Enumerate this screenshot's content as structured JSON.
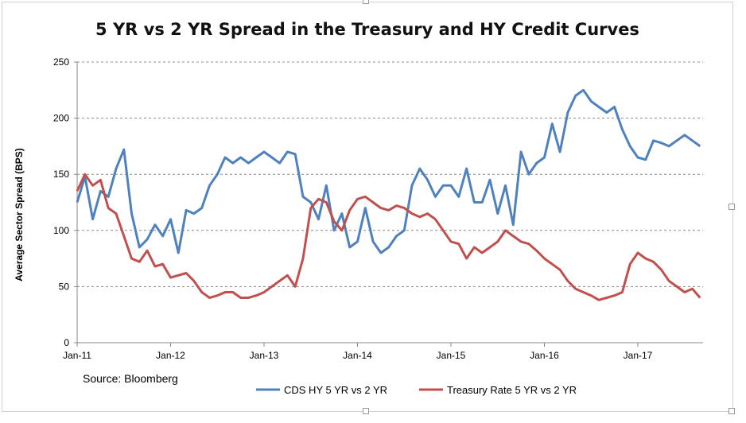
{
  "chart_data": {
    "type": "line",
    "title": "5 YR vs 2 YR Spread in the Treasury and HY Credit Curves",
    "ylabel": "Average Sector Spread (BPS)",
    "xlabel": "",
    "source": "Source: Bloomberg",
    "ylim": [
      0,
      250
    ],
    "yticks": [
      "0",
      "50",
      "100",
      "150",
      "200",
      "250"
    ],
    "xticks": [
      "Jan-11",
      "Jan-12",
      "Jan-13",
      "Jan-14",
      "Jan-15",
      "Jan-16",
      "Jan-17"
    ],
    "grid": true,
    "legend": "bottom",
    "x": [
      "Jan-11",
      "Feb-11",
      "Mar-11",
      "Apr-11",
      "May-11",
      "Jun-11",
      "Jul-11",
      "Aug-11",
      "Sep-11",
      "Oct-11",
      "Nov-11",
      "Dec-11",
      "Jan-12",
      "Feb-12",
      "Mar-12",
      "Apr-12",
      "May-12",
      "Jun-12",
      "Jul-12",
      "Aug-12",
      "Sep-12",
      "Oct-12",
      "Nov-12",
      "Dec-12",
      "Jan-13",
      "Feb-13",
      "Mar-13",
      "Apr-13",
      "May-13",
      "Jun-13",
      "Jul-13",
      "Aug-13",
      "Sep-13",
      "Oct-13",
      "Nov-13",
      "Dec-13",
      "Jan-14",
      "Feb-14",
      "Mar-14",
      "Apr-14",
      "May-14",
      "Jun-14",
      "Jul-14",
      "Aug-14",
      "Sep-14",
      "Oct-14",
      "Nov-14",
      "Dec-14",
      "Jan-15",
      "Feb-15",
      "Mar-15",
      "Apr-15",
      "May-15",
      "Jun-15",
      "Jul-15",
      "Aug-15",
      "Sep-15",
      "Oct-15",
      "Nov-15",
      "Dec-15",
      "Jan-16",
      "Feb-16",
      "Mar-16",
      "Apr-16",
      "May-16",
      "Jun-16",
      "Jul-16",
      "Aug-16",
      "Sep-16",
      "Oct-16",
      "Nov-16",
      "Dec-16",
      "Jan-17",
      "Feb-17",
      "Mar-17",
      "Apr-17",
      "May-17",
      "Jun-17",
      "Jul-17",
      "Aug-17",
      "Sep-17"
    ],
    "series": [
      {
        "name": "CDS HY 5 YR vs 2 YR",
        "color": "#4f81bd",
        "values": [
          125,
          148,
          110,
          135,
          130,
          155,
          172,
          115,
          85,
          92,
          105,
          95,
          110,
          80,
          118,
          115,
          120,
          140,
          150,
          165,
          160,
          165,
          160,
          165,
          170,
          165,
          160,
          170,
          168,
          130,
          125,
          110,
          140,
          100,
          115,
          85,
          90,
          120,
          90,
          80,
          85,
          95,
          100,
          140,
          155,
          145,
          130,
          140,
          140,
          130,
          155,
          125,
          125,
          145,
          115,
          140,
          105,
          170,
          150,
          160,
          165,
          195,
          170,
          205,
          220,
          225,
          215,
          210,
          205,
          210,
          190,
          175,
          165,
          163,
          180,
          178,
          175,
          180,
          185,
          180,
          175
        ]
      },
      {
        "name": "Treasury Rate 5 YR vs 2 YR",
        "color": "#c0504d",
        "values": [
          135,
          150,
          140,
          145,
          120,
          115,
          95,
          75,
          72,
          82,
          68,
          70,
          58,
          60,
          62,
          55,
          45,
          40,
          42,
          45,
          45,
          40,
          40,
          42,
          45,
          50,
          55,
          60,
          50,
          75,
          120,
          128,
          125,
          108,
          100,
          118,
          128,
          130,
          125,
          120,
          118,
          122,
          120,
          115,
          112,
          115,
          110,
          100,
          90,
          88,
          75,
          85,
          80,
          85,
          90,
          100,
          95,
          90,
          88,
          82,
          75,
          70,
          65,
          55,
          48,
          45,
          42,
          38,
          40,
          42,
          45,
          70,
          80,
          75,
          72,
          65,
          55,
          50,
          45,
          48,
          40
        ]
      }
    ]
  }
}
